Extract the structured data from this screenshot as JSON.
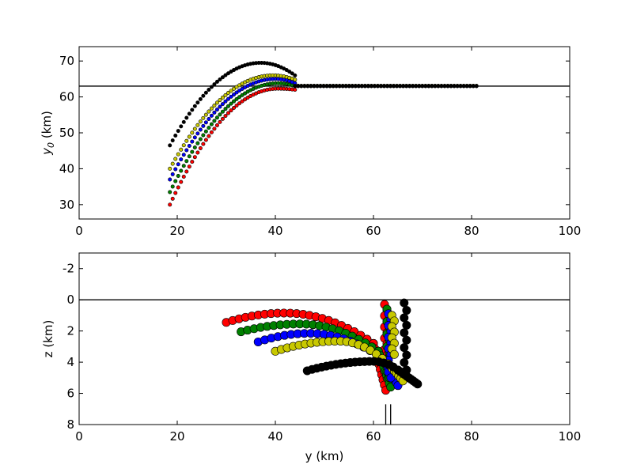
{
  "chart_data": [
    {
      "type": "scatter",
      "xlim": [
        0,
        100
      ],
      "ylim": [
        26,
        74
      ],
      "xticks": [
        0,
        20,
        40,
        60,
        80,
        100
      ],
      "yticks": [
        30,
        40,
        50,
        60,
        70
      ],
      "xtick_labels": [
        "0",
        "20",
        "40",
        "60",
        "80",
        "100"
      ],
      "ytick_labels": [
        "30",
        "40",
        "50",
        "60",
        "70"
      ],
      "xlabel": "",
      "ylabel_main": "y",
      "ylabel_sub": "0",
      "ylabel_unit": " (km)",
      "hline": 63,
      "grid": false,
      "series": [
        {
          "color": "#ff0000",
          "curve": {
            "x_start": 18.5,
            "x_peak": 40.5,
            "x_end": 44.0,
            "y_start": 30.0,
            "y_peak": 62.3,
            "y_end": 62.0,
            "n": 46
          }
        },
        {
          "color": "#008000",
          "curve": {
            "x_start": 18.5,
            "x_peak": 40.5,
            "x_end": 44.0,
            "y_start": 33.5,
            "y_peak": 63.8,
            "y_end": 63.0,
            "n": 46
          }
        },
        {
          "color": "#0000ff",
          "curve": {
            "x_start": 18.5,
            "x_peak": 40.0,
            "x_end": 44.0,
            "y_start": 37.0,
            "y_peak": 65.0,
            "y_end": 63.8,
            "n": 46
          }
        },
        {
          "color": "#c8c800",
          "curve": {
            "x_start": 18.5,
            "x_peak": 39.5,
            "x_end": 44.0,
            "y_start": 40.0,
            "y_peak": 66.0,
            "y_end": 64.8,
            "n": 46
          }
        },
        {
          "color": "#000000",
          "curve": {
            "x_start": 18.5,
            "x_peak": 37.0,
            "x_end": 44.0,
            "y_start": 46.5,
            "y_peak": 69.5,
            "y_end": 66.0,
            "n": 46
          }
        }
      ],
      "flat_segments": [
        {
          "color": "#c8c800",
          "x_start": 44,
          "x_end": 81,
          "y": 63.1,
          "n": 58
        },
        {
          "color": "#000000",
          "x_start": 44,
          "x_end": 81,
          "y": 63.0,
          "n": 58
        }
      ]
    },
    {
      "type": "scatter",
      "xlim": [
        0,
        100
      ],
      "ylim": [
        8,
        -3
      ],
      "xticks": [
        0,
        20,
        40,
        60,
        80,
        100
      ],
      "yticks": [
        -2,
        0,
        2,
        4,
        6,
        8
      ],
      "xtick_labels": [
        "0",
        "20",
        "40",
        "60",
        "80",
        "100"
      ],
      "ytick_labels": [
        "-2",
        "0",
        "2",
        "4",
        "6",
        "8"
      ],
      "xlabel": "y (km)",
      "ylabel": "z (km)",
      "hline": 0,
      "vlines": [
        62.5,
        63.5
      ],
      "grid": false,
      "series": [
        {
          "color": "#ff0000",
          "arc": {
            "x_start": 30,
            "x_end": 60,
            "z_start": 1.45,
            "z_top": 0.85,
            "x_top": 42,
            "z_end": 2.8,
            "n": 24
          },
          "drop": {
            "x_start": 60,
            "x_end": 62.5,
            "z_start": 2.8,
            "z_end": 5.8,
            "n": 10
          },
          "column": {
            "x": 62.5,
            "z_start": 0.3,
            "z_end": 5.0,
            "n": 14
          }
        },
        {
          "color": "#008000",
          "arc": {
            "x_start": 33,
            "x_end": 61,
            "z_start": 2.05,
            "z_top": 1.55,
            "x_top": 45,
            "z_end": 3.3,
            "n": 22
          },
          "drop": {
            "x_start": 61,
            "x_end": 63.5,
            "z_start": 3.3,
            "z_end": 5.6,
            "n": 10
          },
          "column": {
            "x": 63,
            "z_start": 0.6,
            "z_end": 5.0,
            "n": 12
          }
        },
        {
          "color": "#0000ff",
          "arc": {
            "x_start": 36.5,
            "x_end": 62,
            "z_start": 2.7,
            "z_top": 2.15,
            "x_top": 47,
            "z_end": 3.8,
            "n": 20
          },
          "drop": {
            "x_start": 62,
            "x_end": 65,
            "z_start": 3.8,
            "z_end": 5.5,
            "n": 10
          },
          "column": {
            "x": 63.3,
            "z_start": 0.9,
            "z_end": 5.0,
            "n": 12
          }
        },
        {
          "color": "#c8c800",
          "arc": {
            "x_start": 40,
            "x_end": 63,
            "z_start": 3.3,
            "z_top": 2.65,
            "x_top": 53,
            "z_end": 4.1,
            "n": 20
          },
          "drop": {
            "x_start": 63,
            "x_end": 66,
            "z_start": 4.1,
            "z_end": 5.2,
            "n": 8
          },
          "column": {
            "x": 64,
            "z_start": 1.0,
            "z_end": 3.5,
            "n": 8
          }
        },
        {
          "color": "#000000",
          "arc": {
            "x_start": 46.5,
            "x_end": 65,
            "z_start": 4.55,
            "z_top": 3.95,
            "x_top": 60,
            "z_end": 4.5,
            "n": 20
          },
          "drop": {
            "x_start": 65,
            "x_end": 69,
            "z_start": 4.5,
            "z_end": 5.4,
            "n": 10
          },
          "column": {
            "x": 66.5,
            "z_start": 0.2,
            "z_end": 4.5,
            "n": 10
          }
        }
      ]
    }
  ]
}
